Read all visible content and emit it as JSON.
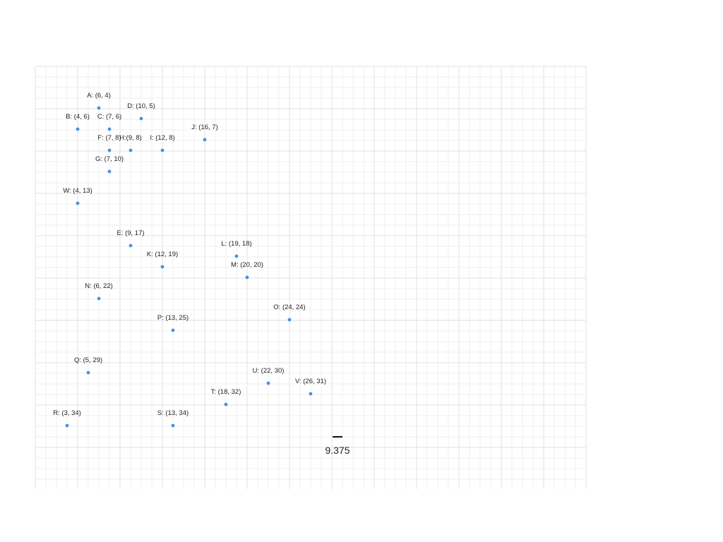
{
  "diagram": {
    "colors": {
      "background": "#ffffff",
      "grid_minor": "#efefef",
      "grid_major": "#e0e0e0",
      "point": "#4a90e2",
      "label": "#222222",
      "scale_bar": "#111111"
    },
    "points": [
      {
        "id": "A",
        "x": 6,
        "y": 4,
        "label": "A: (6, 4)"
      },
      {
        "id": "B",
        "x": 4,
        "y": 6,
        "label": "B: (4, 6)"
      },
      {
        "id": "C",
        "x": 7,
        "y": 6,
        "label": "C: (7, 6)"
      },
      {
        "id": "D",
        "x": 10,
        "y": 5,
        "label": "D: (10, 5)"
      },
      {
        "id": "E",
        "x": 9,
        "y": 17,
        "label": "E: (9, 17)"
      },
      {
        "id": "F",
        "x": 7,
        "y": 8,
        "label": "F: (7, 8)"
      },
      {
        "id": "G",
        "x": 7,
        "y": 10,
        "label": "G: (7, 10)"
      },
      {
        "id": "H",
        "x": 9,
        "y": 8,
        "label": "H:(9, 8)"
      },
      {
        "id": "I",
        "x": 12,
        "y": 8,
        "label": "I: (12, 8)"
      },
      {
        "id": "J",
        "x": 16,
        "y": 7,
        "label": "J: (16, 7)"
      },
      {
        "id": "K",
        "x": 12,
        "y": 19,
        "label": "K: (12, 19)"
      },
      {
        "id": "L",
        "x": 19,
        "y": 18,
        "label": "L: (19, 18)"
      },
      {
        "id": "M",
        "x": 20,
        "y": 20,
        "label": "M: (20, 20)"
      },
      {
        "id": "N",
        "x": 6,
        "y": 22,
        "label": "N: (6, 22)"
      },
      {
        "id": "O",
        "x": 24,
        "y": 24,
        "label": "O: (24, 24)"
      },
      {
        "id": "P",
        "x": 13,
        "y": 25,
        "label": "P: (13, 25)"
      },
      {
        "id": "Q",
        "x": 5,
        "y": 29,
        "label": "Q: (5, 29)"
      },
      {
        "id": "R",
        "x": 3,
        "y": 34,
        "label": "R: (3, 34)"
      },
      {
        "id": "S",
        "x": 13,
        "y": 34,
        "label": "S: (13, 34)"
      },
      {
        "id": "T",
        "x": 18,
        "y": 32,
        "label": "T: (18, 32)"
      },
      {
        "id": "U",
        "x": 22,
        "y": 30,
        "label": "U: (22, 30)"
      },
      {
        "id": "V",
        "x": 26,
        "y": 31,
        "label": "V: (26, 31)"
      },
      {
        "id": "W",
        "x": 4,
        "y": 13,
        "label": "W: (4, 13)"
      }
    ],
    "scale_bar": {
      "label": "9.375"
    }
  }
}
